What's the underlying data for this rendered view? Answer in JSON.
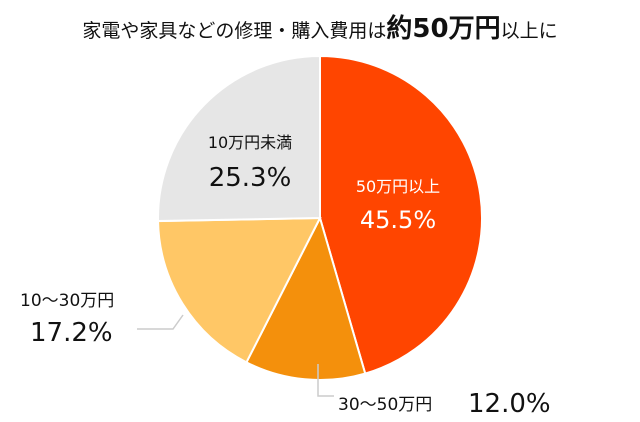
{
  "title": {
    "prefix": "家電や家具などの修理・購入費用は",
    "highlight": "約50万円",
    "suffix": "以上に"
  },
  "chart_data": {
    "type": "pie",
    "title": "家電や家具などの修理・購入費用は約50万円以上に",
    "slices": [
      {
        "label": "50万円以上",
        "value": 45.5,
        "value_label": "45.5%",
        "color": "#ff4500"
      },
      {
        "label": "30〜50万円",
        "value": 12.0,
        "value_label": "12.0%",
        "color": "#f4900c"
      },
      {
        "label": "10〜30万円",
        "value": 17.2,
        "value_label": "17.2%",
        "color": "#ffc766"
      },
      {
        "label": "10万円未満",
        "value": 25.3,
        "value_label": "25.3%",
        "color": "#e6e6e6"
      }
    ],
    "start_angle": "12 o'clock",
    "direction": "clockwise",
    "label_line_color": "#cccccc"
  }
}
